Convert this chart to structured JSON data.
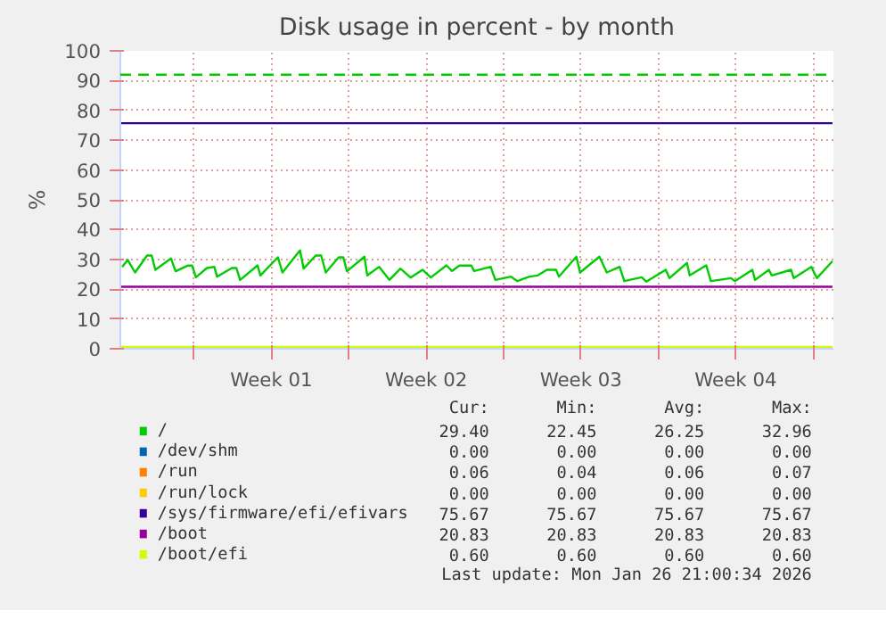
{
  "chart_data": {
    "type": "line",
    "title": "Disk usage in percent - by month",
    "ylabel": "%",
    "xlim": [
      "2025-12-25T16:00",
      "2026-01-26T22:00"
    ],
    "xticks": [
      {
        "value": "2025-12-29",
        "label": null
      },
      {
        "value": "2026-01-01T12:00",
        "label": "Week 01"
      },
      {
        "value": "2026-01-05",
        "label": null
      },
      {
        "value": "2026-01-08T12:00",
        "label": "Week 02"
      },
      {
        "value": "2026-01-12",
        "label": null
      },
      {
        "value": "2026-01-15T12:00",
        "label": "Week 03"
      },
      {
        "value": "2026-01-19",
        "label": null
      },
      {
        "value": "2026-01-22T12:00",
        "label": "Week 04"
      },
      {
        "value": "2026-01-26",
        "label": null
      }
    ],
    "ylim": [
      0,
      100
    ],
    "yticks": [
      0,
      10,
      20,
      30,
      40,
      50,
      60,
      70,
      80,
      90,
      100
    ],
    "grid": true,
    "legend": "bottom",
    "series": [
      {
        "name": "/",
        "color": "#00cc00",
        "x": [
          "2025-12-25T18:00",
          "2025-12-26T00:00",
          "2025-12-26T08:00",
          "2025-12-26T21:00",
          "2025-12-27T02:00",
          "2025-12-27T06:00",
          "2025-12-27T23:00",
          "2025-12-28T04:00",
          "2025-12-28T17:00",
          "2025-12-28T22:00",
          "2025-12-29T02:00",
          "2025-12-29T14:00",
          "2025-12-29T22:00",
          "2025-12-30T01:00",
          "2025-12-30T17:00",
          "2025-12-30T22:00",
          "2025-12-31T02:00",
          "2025-12-31T21:00",
          "2026-01-01T00:00",
          "2026-01-01T19:00",
          "2026-01-02T00:00",
          "2026-01-02T19:00",
          "2026-01-02T23:00",
          "2026-01-03T12:00",
          "2026-01-03T18:00",
          "2026-01-03T23:00",
          "2026-01-04T13:00",
          "2026-01-04T18:00",
          "2026-01-04T22:00",
          "2026-01-05T17:00",
          "2026-01-05T20:00",
          "2026-01-06T09:00",
          "2026-01-06T20:00",
          "2026-01-07T08:00",
          "2026-01-07T19:00",
          "2026-01-08T08:00",
          "2026-01-08T17:00",
          "2026-01-09T10:00",
          "2026-01-09T16:00",
          "2026-01-10T00:00",
          "2026-01-10T13:00",
          "2026-01-10T16:00",
          "2026-01-11T10:00",
          "2026-01-11T15:00",
          "2026-01-12T08:00",
          "2026-01-12T15:00",
          "2026-01-13T04:00",
          "2026-01-13T13:00",
          "2026-01-13T23:00",
          "2026-01-14T09:00",
          "2026-01-14T12:00",
          "2026-01-15T07:00",
          "2026-01-15T11:00",
          "2026-01-16T08:00",
          "2026-01-16T16:00",
          "2026-01-17T06:00",
          "2026-01-17T11:00",
          "2026-01-18T06:00",
          "2026-01-18T11:00",
          "2026-01-19T08:00",
          "2026-01-19T12:00",
          "2026-01-20T07:00",
          "2026-01-20T10:00",
          "2026-01-21T04:00",
          "2026-01-21T09:00",
          "2026-01-22T07:00",
          "2026-01-22T11:00",
          "2026-01-23T06:00",
          "2026-01-23T09:00",
          "2026-01-24T00:00",
          "2026-01-24T03:00",
          "2026-01-25T00:00",
          "2026-01-25T03:00",
          "2026-01-25T22:00",
          "2026-01-26T04:00",
          "2026-01-26T21:00"
        ],
        "values": [
          27.5,
          29.8,
          25.6,
          31.3,
          31.3,
          26.5,
          30.3,
          26.0,
          27.9,
          27.9,
          24.0,
          27.1,
          27.5,
          24.2,
          27.1,
          27.1,
          23.1,
          28.0,
          24.6,
          30.7,
          25.6,
          33.0,
          26.9,
          31.3,
          31.3,
          25.6,
          30.7,
          30.7,
          26.0,
          30.9,
          24.6,
          27.5,
          23.1,
          26.9,
          23.9,
          26.5,
          23.9,
          28.0,
          26.1,
          27.9,
          27.9,
          26.1,
          27.5,
          23.1,
          24.2,
          22.7,
          24.2,
          24.6,
          26.5,
          26.5,
          24.2,
          30.9,
          25.6,
          30.9,
          25.6,
          27.5,
          22.7,
          24.0,
          22.5,
          26.5,
          23.7,
          28.8,
          24.6,
          28.0,
          22.7,
          23.7,
          22.7,
          26.5,
          23.1,
          26.5,
          24.6,
          26.5,
          23.7,
          27.5,
          23.7,
          29.4
        ]
      },
      {
        "name": "/dev/shm",
        "color": "#0066b3"
      },
      {
        "name": "/run",
        "color": "#ff8000"
      },
      {
        "name": "/run/lock",
        "color": "#ffcc00"
      },
      {
        "name": "/sys/firmware/efi/efivars",
        "color": "#330099",
        "x": [
          "2025-12-25T16:00",
          "2026-01-26T21:00"
        ],
        "values": [
          75.7,
          75.7
        ]
      },
      {
        "name": "/boot",
        "color": "#990099",
        "x": [
          "2025-12-25T16:00",
          "2026-01-26T21:00"
        ],
        "values": [
          20.8,
          20.8
        ]
      },
      {
        "name": "/boot/efi",
        "color": "#ccff00",
        "x": [
          "2025-12-25T16:00",
          "2026-01-26T21:00"
        ],
        "values": [
          0.6,
          0.6
        ]
      }
    ],
    "ref_lines": [
      {
        "axis": "y",
        "value": 92,
        "label": null,
        "color": "#00cc00",
        "line_style": "dashed"
      }
    ],
    "annotations": [
      "Cur:",
      "Min:",
      "Avg:",
      "Max:",
      "29.40",
      "22.45",
      "26.25",
      "32.96",
      "0.00",
      "0.00",
      "0.00",
      "0.00",
      "0.06",
      "0.04",
      "0.06",
      "0.07",
      "0.00",
      "0.00",
      "0.00",
      "0.00",
      "75.67",
      "75.67",
      "75.67",
      "75.67",
      "20.83",
      "20.83",
      "20.83",
      "20.83",
      "0.60",
      "0.60",
      "0.60",
      "0.60",
      "Last update: Mon Jan 26 21:00:34 2026"
    ]
  }
}
